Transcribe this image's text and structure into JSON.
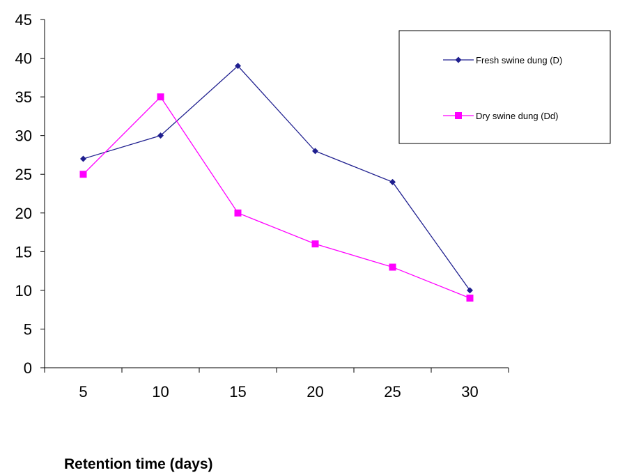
{
  "chart_data": {
    "type": "line",
    "title": "",
    "xlabel": "Retention time (days)",
    "ylabel": "",
    "categories": [
      "5",
      "10",
      "15",
      "20",
      "25",
      "30"
    ],
    "ylim": [
      0,
      45
    ],
    "yticks": [
      0,
      5,
      10,
      15,
      20,
      25,
      30,
      35,
      40,
      45
    ],
    "grid": false,
    "legend_position": "top-right",
    "series": [
      {
        "name": "Fresh swine dung (D)",
        "values": [
          27,
          30,
          39,
          28,
          24,
          10
        ],
        "color": "#1f1f8f",
        "marker": "diamond"
      },
      {
        "name": "Dry swine dung (Dd)",
        "values": [
          25,
          35,
          20,
          16,
          13,
          9
        ],
        "color": "#ff00ff",
        "marker": "square"
      }
    ]
  }
}
